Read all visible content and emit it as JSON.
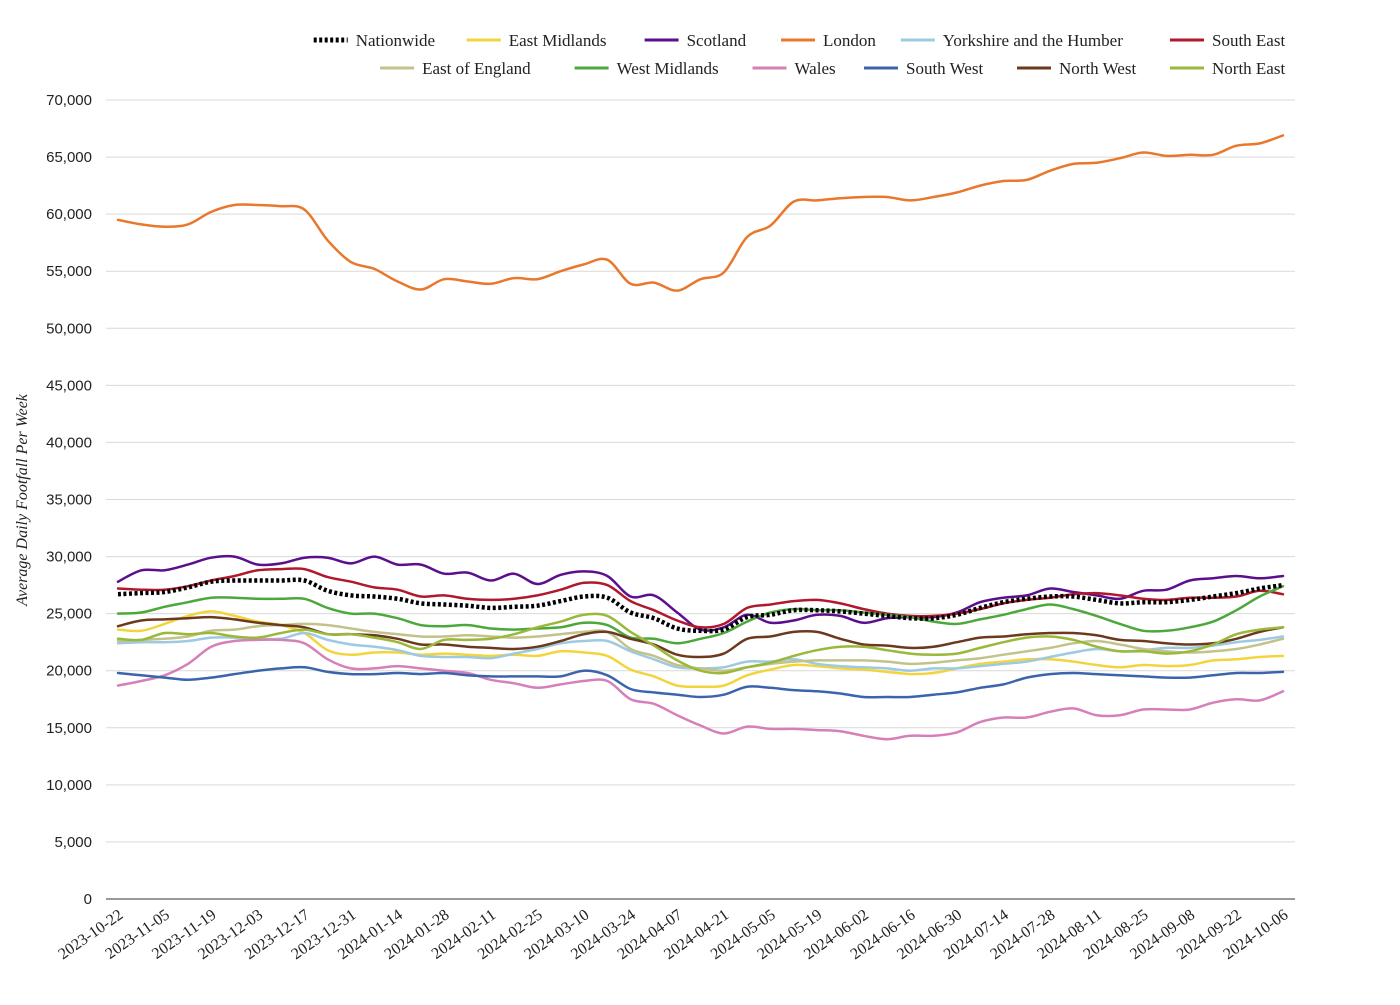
{
  "chart_data": {
    "type": "line",
    "title": "",
    "xlabel": "",
    "ylabel": "Average Daily Footfall Per Week",
    "ylim": [
      0,
      70000
    ],
    "yticks": [
      0,
      5000,
      10000,
      15000,
      20000,
      25000,
      30000,
      35000,
      40000,
      45000,
      50000,
      55000,
      60000,
      65000,
      70000
    ],
    "ytick_labels": [
      "0",
      "5,000",
      "10,000",
      "15,000",
      "20,000",
      "25,000",
      "30,000",
      "35,000",
      "40,000",
      "45,000",
      "50,000",
      "55,000",
      "60,000",
      "65,000",
      "70,000"
    ],
    "grid": true,
    "legend_position": "top",
    "x": [
      "2023-10-22",
      "2023-10-29",
      "2023-11-05",
      "2023-11-12",
      "2023-11-19",
      "2023-11-26",
      "2023-12-03",
      "2023-12-10",
      "2023-12-17",
      "2023-12-24",
      "2023-12-31",
      "2024-01-07",
      "2024-01-14",
      "2024-01-21",
      "2024-01-28",
      "2024-02-04",
      "2024-02-11",
      "2024-02-18",
      "2024-02-25",
      "2024-03-03",
      "2024-03-10",
      "2024-03-17",
      "2024-03-24",
      "2024-03-31",
      "2024-04-07",
      "2024-04-14",
      "2024-04-21",
      "2024-04-28",
      "2024-05-05",
      "2024-05-12",
      "2024-05-19",
      "2024-05-26",
      "2024-06-02",
      "2024-06-09",
      "2024-06-16",
      "2024-06-23",
      "2024-06-30",
      "2024-07-07",
      "2024-07-14",
      "2024-07-21",
      "2024-07-28",
      "2024-08-04",
      "2024-08-11",
      "2024-08-18",
      "2024-08-25",
      "2024-09-01",
      "2024-09-08",
      "2024-09-15",
      "2024-09-22",
      "2024-09-29",
      "2024-10-06"
    ],
    "x_tick_labels": [
      "2023-10-22",
      "2023-11-05",
      "2023-11-19",
      "2023-12-03",
      "2023-12-17",
      "2023-12-31",
      "2024-01-14",
      "2024-01-28",
      "2024-02-11",
      "2024-02-25",
      "2024-03-10",
      "2024-03-24",
      "2024-04-07",
      "2024-04-21",
      "2024-05-05",
      "2024-05-19",
      "2024-06-02",
      "2024-06-16",
      "2024-06-30",
      "2024-07-14",
      "2024-07-28",
      "2024-08-11",
      "2024-08-25",
      "2024-09-08",
      "2024-09-22",
      "2024-10-06"
    ],
    "series": [
      {
        "name": "Nationwide",
        "color": "#000000",
        "dashed": true,
        "values": [
          26700,
          26800,
          26900,
          27300,
          27800,
          27900,
          27900,
          27900,
          27900,
          27000,
          26600,
          26500,
          26300,
          25900,
          25800,
          25700,
          25500,
          25600,
          25700,
          26100,
          26500,
          26400,
          25100,
          24600,
          23700,
          23500,
          23600,
          24700,
          24900,
          25300,
          25300,
          25200,
          25000,
          24800,
          24600,
          24600,
          24900,
          25500,
          26000,
          26300,
          26500,
          26500,
          26200,
          25900,
          26000,
          26000,
          26200,
          26500,
          26800,
          27200,
          27500
        ]
      },
      {
        "name": "East Midlands",
        "color": "#f2d53c",
        "values": [
          23600,
          23500,
          24100,
          24800,
          25200,
          24800,
          24300,
          24000,
          23300,
          21800,
          21400,
          21600,
          21600,
          21400,
          21500,
          21400,
          21300,
          21400,
          21300,
          21700,
          21600,
          21300,
          20100,
          19500,
          18700,
          18600,
          18700,
          19600,
          20100,
          20500,
          20400,
          20200,
          20100,
          19900,
          19700,
          19800,
          20200,
          20600,
          20800,
          21000,
          21000,
          20800,
          20500,
          20300,
          20500,
          20400,
          20500,
          20900,
          21000,
          21200,
          21300
        ]
      },
      {
        "name": "Scotland",
        "color": "#5b0f8c",
        "values": [
          27800,
          28800,
          28800,
          29300,
          29900,
          30000,
          29300,
          29400,
          29900,
          29900,
          29400,
          30000,
          29300,
          29300,
          28500,
          28600,
          27900,
          28500,
          27600,
          28400,
          28700,
          28300,
          26500,
          26600,
          25100,
          23600,
          23800,
          24900,
          24200,
          24400,
          24900,
          24800,
          24200,
          24600,
          24700,
          24700,
          25100,
          26000,
          26400,
          26600,
          27200,
          26900,
          26600,
          26300,
          27000,
          27100,
          27900,
          28100,
          28300,
          28100,
          28300
        ]
      },
      {
        "name": "London",
        "color": "#e8782c",
        "values": [
          59500,
          59100,
          58900,
          59100,
          60200,
          60800,
          60800,
          60700,
          60400,
          57700,
          55800,
          55200,
          54100,
          53400,
          54300,
          54100,
          53900,
          54400,
          54300,
          55000,
          55600,
          56000,
          53900,
          54000,
          53300,
          54300,
          54900,
          58000,
          59000,
          61100,
          61200,
          61400,
          61500,
          61500,
          61200,
          61500,
          61900,
          62500,
          62900,
          63000,
          63800,
          64400,
          64500,
          64900,
          65400,
          65100,
          65200,
          65200,
          66000,
          66200,
          66900
        ]
      },
      {
        "name": "Yorkshire and the Humber",
        "color": "#9ecae1",
        "values": [
          22400,
          22500,
          22500,
          22600,
          22900,
          22900,
          22800,
          22800,
          23300,
          22700,
          22300,
          22100,
          21800,
          21300,
          21200,
          21200,
          21100,
          21500,
          21900,
          22400,
          22600,
          22600,
          21700,
          21000,
          20300,
          20200,
          20300,
          20800,
          20800,
          21000,
          20600,
          20400,
          20300,
          20200,
          20000,
          20200,
          20200,
          20400,
          20600,
          20800,
          21200,
          21600,
          21900,
          21700,
          21800,
          22000,
          22000,
          22200,
          22500,
          22700,
          23000
        ]
      },
      {
        "name": "South East",
        "color": "#b0192c",
        "values": [
          27200,
          27100,
          27100,
          27400,
          27900,
          28300,
          28800,
          28900,
          28900,
          28200,
          27800,
          27300,
          27100,
          26500,
          26600,
          26300,
          26200,
          26300,
          26600,
          27100,
          27700,
          27500,
          26100,
          25300,
          24400,
          23800,
          24100,
          25500,
          25800,
          26100,
          26200,
          25900,
          25400,
          25000,
          24800,
          24800,
          25000,
          25400,
          25900,
          26200,
          26400,
          26700,
          26800,
          26600,
          26300,
          26200,
          26400,
          26400,
          26500,
          27000,
          26700
        ]
      },
      {
        "name": "East of England",
        "color": "#c2c28b",
        "values": [
          22600,
          22700,
          22800,
          23000,
          23500,
          23600,
          23900,
          24000,
          24100,
          24000,
          23700,
          23400,
          23200,
          23000,
          23000,
          23100,
          23000,
          22900,
          23000,
          23200,
          23400,
          23400,
          21900,
          21300,
          20500,
          20200,
          20000,
          20300,
          20600,
          20800,
          20900,
          20900,
          20900,
          20800,
          20600,
          20700,
          20900,
          21100,
          21400,
          21700,
          22000,
          22400,
          22600,
          22300,
          21900,
          21700,
          21600,
          21700,
          21900,
          22300,
          22800
        ]
      },
      {
        "name": "West Midlands",
        "color": "#4da83c",
        "values": [
          25000,
          25100,
          25600,
          26000,
          26400,
          26400,
          26300,
          26300,
          26300,
          25500,
          25000,
          25000,
          24600,
          24000,
          23900,
          24000,
          23700,
          23600,
          23700,
          23800,
          24200,
          24000,
          22900,
          22800,
          22400,
          22800,
          23300,
          24300,
          25100,
          25400,
          25300,
          25300,
          25100,
          24900,
          24700,
          24300,
          24100,
          24500,
          24900,
          25400,
          25800,
          25400,
          24800,
          24100,
          23500,
          23500,
          23800,
          24300,
          25300,
          26500,
          27400
        ]
      },
      {
        "name": "Wales",
        "color": "#d67fb8",
        "values": [
          18700,
          19100,
          19600,
          20600,
          22100,
          22600,
          22700,
          22700,
          22400,
          21000,
          20200,
          20200,
          20400,
          20200,
          20000,
          19800,
          19200,
          18900,
          18500,
          18800,
          19100,
          19100,
          17500,
          17100,
          16100,
          15200,
          14500,
          15100,
          14900,
          14900,
          14800,
          14700,
          14300,
          14000,
          14300,
          14300,
          14600,
          15500,
          15900,
          15900,
          16400,
          16700,
          16100,
          16100,
          16600,
          16600,
          16600,
          17200,
          17500,
          17400,
          18200
        ]
      },
      {
        "name": "South West",
        "color": "#3c64ac",
        "values": [
          19800,
          19600,
          19400,
          19200,
          19400,
          19700,
          20000,
          20200,
          20300,
          19900,
          19700,
          19700,
          19800,
          19700,
          19800,
          19600,
          19500,
          19500,
          19500,
          19500,
          20000,
          19600,
          18400,
          18100,
          17900,
          17700,
          17900,
          18600,
          18500,
          18300,
          18200,
          18000,
          17700,
          17700,
          17700,
          17900,
          18100,
          18500,
          18800,
          19400,
          19700,
          19800,
          19700,
          19600,
          19500,
          19400,
          19400,
          19600,
          19800,
          19800,
          19900
        ]
      },
      {
        "name": "North West",
        "color": "#6b3a1e",
        "values": [
          23900,
          24400,
          24500,
          24600,
          24700,
          24500,
          24200,
          24000,
          23800,
          23200,
          23200,
          23100,
          22800,
          22300,
          22300,
          22100,
          22000,
          21900,
          22100,
          22600,
          23200,
          23400,
          22800,
          22300,
          21400,
          21200,
          21500,
          22800,
          23000,
          23400,
          23400,
          22800,
          22300,
          22200,
          22000,
          22100,
          22500,
          22900,
          23000,
          23200,
          23300,
          23300,
          23100,
          22700,
          22600,
          22400,
          22300,
          22400,
          22800,
          23400,
          23800
        ]
      },
      {
        "name": "North East",
        "color": "#9ab83a",
        "values": [
          22800,
          22700,
          23300,
          23200,
          23300,
          23000,
          22900,
          23300,
          23600,
          23200,
          23200,
          22900,
          22500,
          21900,
          22700,
          22700,
          22800,
          23200,
          23800,
          24300,
          24900,
          24800,
          23400,
          22200,
          20900,
          20000,
          19800,
          20300,
          20700,
          21300,
          21800,
          22100,
          22100,
          21800,
          21500,
          21400,
          21500,
          22000,
          22500,
          22900,
          23000,
          22700,
          22100,
          21700,
          21700,
          21500,
          21700,
          22300,
          23200,
          23600,
          23800
        ]
      }
    ]
  }
}
